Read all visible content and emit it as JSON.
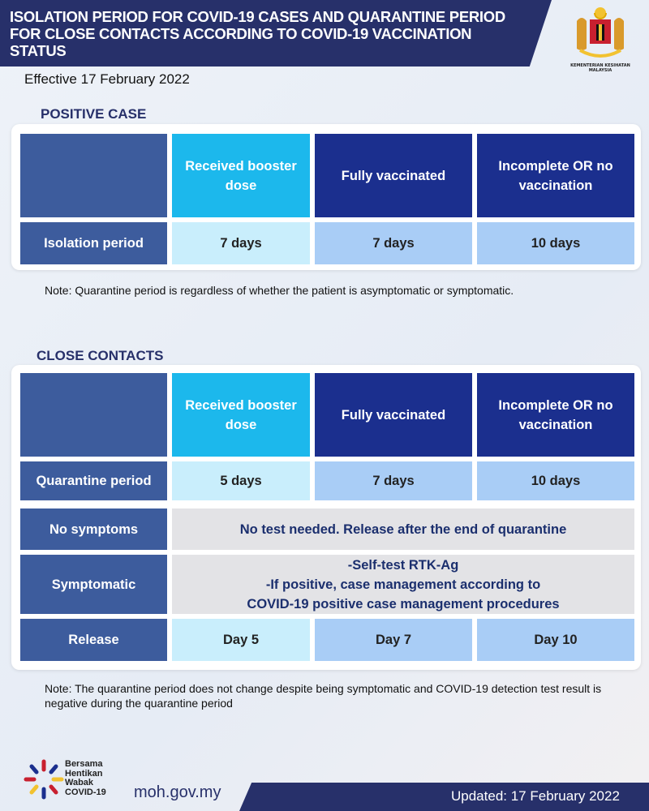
{
  "header": {
    "title": "ISOLATION PERIOD FOR COVID-19 CASES AND QUARANTINE PERIOD FOR CLOSE CONTACTS ACCORDING TO COVID-19 VACCINATION STATUS",
    "logo_caption": "KEMENTERIAN KESIHATAN MALAYSIA",
    "brand_color": "#27306a"
  },
  "effective": "Effective 17 February 2022",
  "positive": {
    "heading": "POSITIVE CASE",
    "columns": [
      "Received booster dose",
      "Fully vaccinated",
      "Incomplete OR no vaccination"
    ],
    "row": {
      "label": "Isolation period",
      "values": [
        "7 days",
        "7 days",
        "10 days"
      ]
    },
    "note": "Note: Quarantine period is regardless of whether the patient is asymptomatic or symptomatic."
  },
  "close": {
    "heading": "CLOSE CONTACTS",
    "columns": [
      "Received booster dose",
      "Fully vaccinated",
      "Incomplete OR no vaccination"
    ],
    "quarantine": {
      "label": "Quarantine period",
      "values": [
        "5 days",
        "7 days",
        "10 days"
      ]
    },
    "no_symptoms": {
      "label": "No symptoms",
      "text": "No test needed. Release after the end of quarantine"
    },
    "symptomatic": {
      "label": "Symptomatic",
      "line1": "-Self-test RTK-Ag",
      "line2": "-If positive, case management according to COVID-19 positive case management procedures"
    },
    "release": {
      "label": "Release",
      "values": [
        "Day 5",
        "Day 7",
        "Day 10"
      ]
    },
    "note": "Note: The quarantine period does not change despite being symptomatic and COVID-19 detection test result is negative during the quarantine period"
  },
  "footer": {
    "campaign": "Bersama Hentikan Wabak COVID-19",
    "url": "moh.gov.my",
    "updated": "Updated: 17 February 2022"
  }
}
